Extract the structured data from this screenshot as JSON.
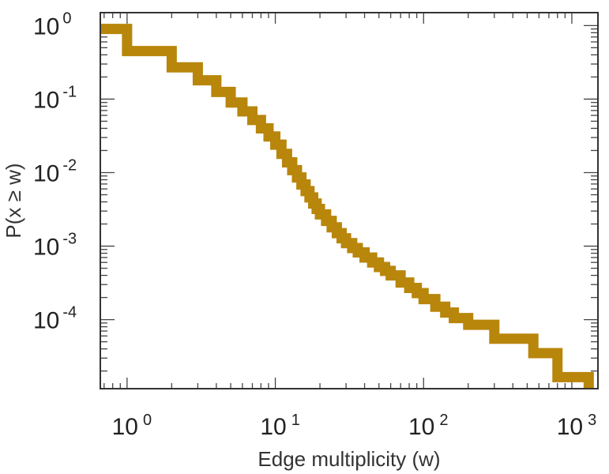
{
  "chart_data": {
    "type": "line",
    "step": true,
    "xscale": "log",
    "yscale": "log",
    "xlabel": "Edge multiplicity (w)",
    "ylabel": "P(x ≥ w)",
    "xlim": [
      0.66,
      1500
    ],
    "ylim": [
      1.15e-05,
      1.5
    ],
    "grid": false,
    "line_color": "#b8860b",
    "x_ticks": [
      {
        "value": 1,
        "base": "10",
        "exp": "0"
      },
      {
        "value": 10,
        "base": "10",
        "exp": "1"
      },
      {
        "value": 100,
        "base": "10",
        "exp": "2"
      },
      {
        "value": 1000,
        "base": "10",
        "exp": "3"
      }
    ],
    "y_ticks": [
      {
        "value": 1,
        "base": "10",
        "exp": "0"
      },
      {
        "value": 0.1,
        "base": "10",
        "exp": "-1"
      },
      {
        "value": 0.01,
        "base": "10",
        "exp": "-2"
      },
      {
        "value": 0.001,
        "base": "10",
        "exp": "-3"
      },
      {
        "value": 0.0001,
        "base": "10",
        "exp": "-4"
      }
    ],
    "series": [
      {
        "x": [
          0.66,
          1,
          2,
          3,
          4,
          5,
          6,
          7,
          8,
          9,
          10,
          11,
          12,
          13,
          14,
          15,
          16,
          17,
          18,
          19,
          20,
          22,
          24,
          26,
          28,
          30,
          33,
          36,
          40,
          45,
          50,
          55,
          60,
          70,
          80,
          90,
          100,
          120,
          140,
          160,
          200,
          300,
          550,
          800,
          1300
        ],
        "y": [
          0.9,
          0.45,
          0.27,
          0.18,
          0.125,
          0.09,
          0.068,
          0.052,
          0.04,
          0.031,
          0.024,
          0.018,
          0.0138,
          0.0108,
          0.0086,
          0.0069,
          0.0056,
          0.0046,
          0.0038,
          0.0032,
          0.0027,
          0.0022,
          0.0018,
          0.0015,
          0.00128,
          0.0011,
          0.00094,
          0.00082,
          0.0007,
          0.0006,
          0.00052,
          0.00046,
          0.0004,
          0.00032,
          0.00027,
          0.00023,
          0.00019,
          0.00015,
          0.000125,
          0.000105,
          8.5e-05,
          5.5e-05,
          3.5e-05,
          1.65e-05,
          1.65e-05
        ]
      }
    ]
  }
}
